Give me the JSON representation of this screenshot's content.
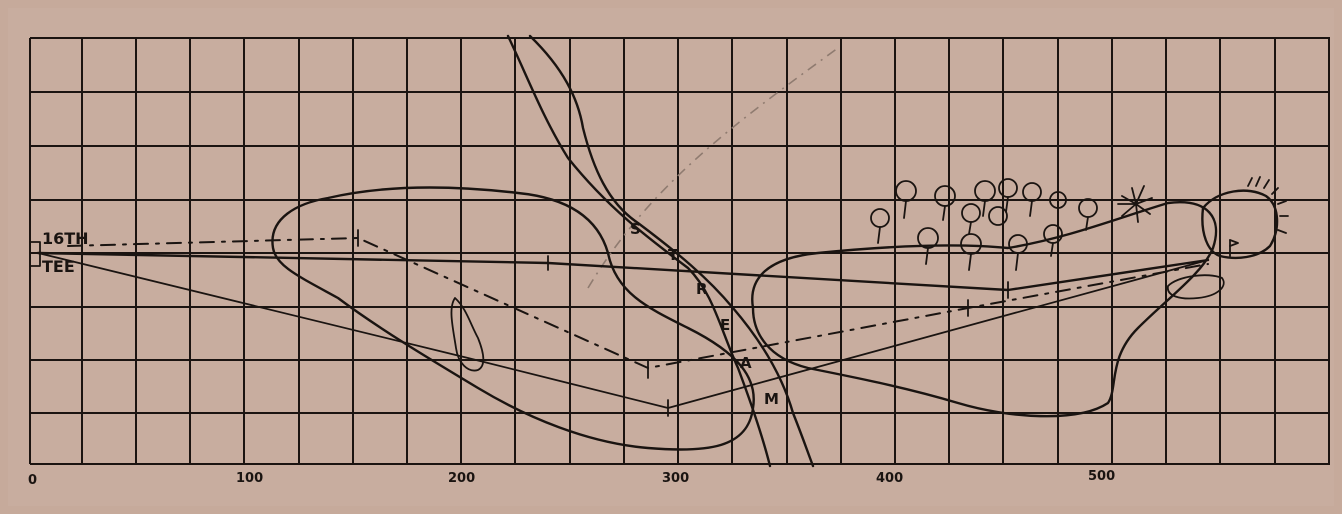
{
  "tee": {
    "number": "16TH",
    "label": "TEE"
  },
  "stream_letters": [
    "S",
    "T",
    "R",
    "E",
    "A",
    "M"
  ],
  "x_axis": {
    "labels": [
      "0",
      "100",
      "200",
      "300",
      "400",
      "500"
    ]
  },
  "colors": {
    "paper": "#c8ad9f",
    "ink": "#1a1411",
    "faint_line": "#8f7b70"
  }
}
